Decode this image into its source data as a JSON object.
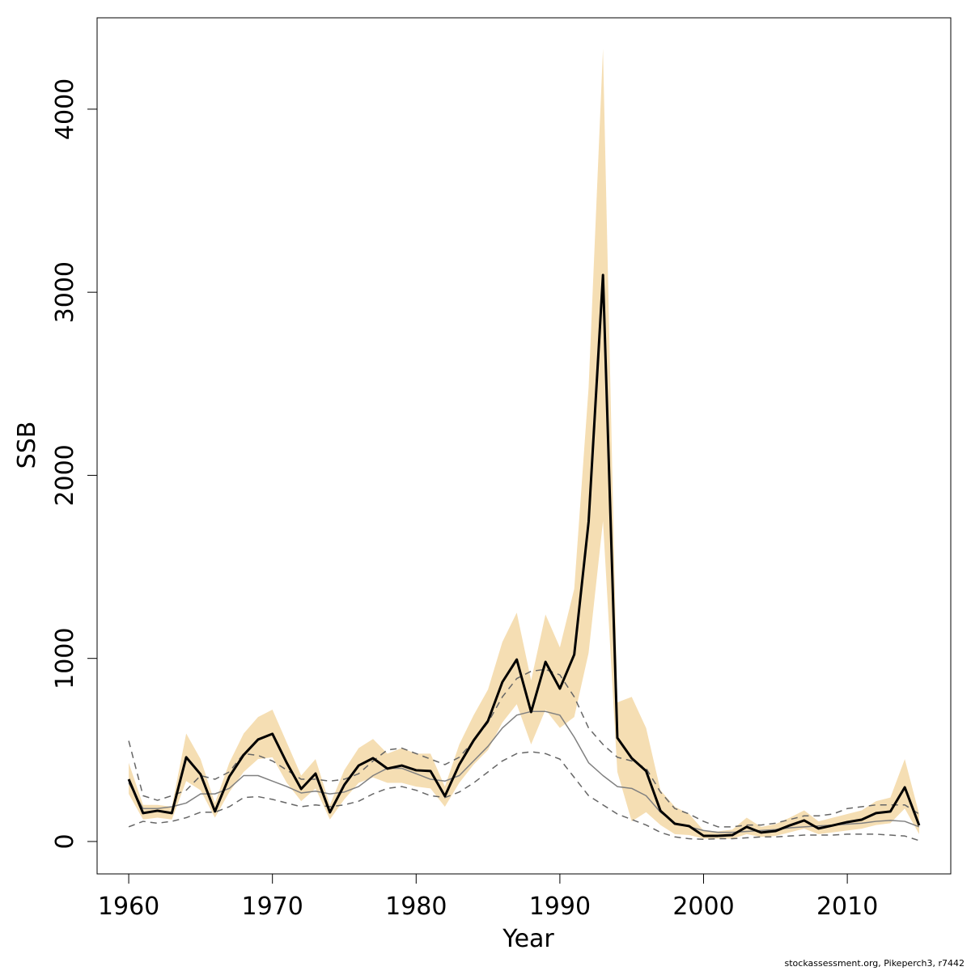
{
  "chart_data": {
    "type": "line",
    "x_label": "Year",
    "y_label": "SSB",
    "footer": "stockassessment.org, Pikeperch3, r7442",
    "x": [
      1960,
      1961,
      1962,
      1963,
      1964,
      1965,
      1966,
      1967,
      1968,
      1969,
      1970,
      1971,
      1972,
      1973,
      1974,
      1975,
      1976,
      1977,
      1978,
      1979,
      1980,
      1981,
      1982,
      1983,
      1984,
      1985,
      1986,
      1987,
      1988,
      1989,
      1990,
      1991,
      1992,
      1993,
      1994,
      1995,
      1996,
      1997,
      1998,
      1999,
      2000,
      2001,
      2002,
      2003,
      2004,
      2005,
      2006,
      2007,
      2008,
      2009,
      2010,
      2011,
      2012,
      2013,
      2014,
      2015
    ],
    "band": {
      "color": "#f5deb3",
      "upper": [
        430,
        200,
        200,
        190,
        590,
        450,
        210,
        430,
        590,
        680,
        720,
        540,
        360,
        450,
        200,
        390,
        510,
        560,
        480,
        510,
        480,
        480,
        300,
        530,
        690,
        830,
        1090,
        1250,
        880,
        1240,
        1060,
        1380,
        2480,
        4330,
        760,
        790,
        620,
        280,
        190,
        150,
        60,
        55,
        65,
        130,
        80,
        95,
        130,
        170,
        110,
        130,
        150,
        170,
        220,
        240,
        450,
        150
      ],
      "lower": [
        260,
        120,
        130,
        120,
        330,
        280,
        130,
        270,
        380,
        450,
        460,
        320,
        220,
        290,
        120,
        230,
        320,
        350,
        320,
        320,
        300,
        290,
        190,
        320,
        420,
        500,
        650,
        750,
        530,
        720,
        620,
        680,
        1030,
        1750,
        380,
        110,
        160,
        90,
        40,
        35,
        15,
        15,
        15,
        40,
        25,
        30,
        50,
        70,
        40,
        50,
        60,
        70,
        90,
        100,
        180,
        40
      ]
    },
    "series": [
      {
        "color": "#808080",
        "width": 1.5,
        "dash": false,
        "values": [
          320,
          180,
          180,
          190,
          210,
          260,
          260,
          290,
          360,
          360,
          330,
          300,
          265,
          275,
          260,
          270,
          300,
          360,
          400,
          400,
          370,
          340,
          330,
          360,
          440,
          520,
          620,
          690,
          710,
          710,
          690,
          570,
          430,
          360,
          300,
          290,
          250,
          160,
          100,
          80,
          60,
          50,
          50,
          55,
          60,
          65,
          75,
          80,
          85,
          90,
          95,
          100,
          110,
          115,
          110,
          80
        ]
      },
      {
        "color": "#666666",
        "width": 1.5,
        "dash": true,
        "values": [
          550,
          250,
          225,
          250,
          280,
          360,
          340,
          380,
          480,
          470,
          440,
          390,
          340,
          340,
          330,
          340,
          370,
          440,
          500,
          510,
          480,
          450,
          420,
          460,
          550,
          650,
          790,
          890,
          930,
          940,
          910,
          790,
          620,
          530,
          460,
          440,
          400,
          270,
          180,
          150,
          110,
          80,
          80,
          90,
          90,
          100,
          120,
          140,
          140,
          150,
          180,
          190,
          200,
          200,
          200,
          150
        ]
      },
      {
        "color": "#666666",
        "width": 1.5,
        "dash": true,
        "values": [
          80,
          110,
          100,
          110,
          130,
          160,
          160,
          190,
          240,
          245,
          230,
          210,
          190,
          200,
          190,
          200,
          220,
          260,
          290,
          300,
          280,
          250,
          240,
          270,
          320,
          380,
          440,
          480,
          490,
          480,
          450,
          350,
          250,
          200,
          150,
          120,
          90,
          50,
          25,
          15,
          12,
          15,
          15,
          20,
          25,
          25,
          30,
          35,
          35,
          35,
          40,
          40,
          40,
          35,
          30,
          5
        ]
      },
      {
        "color": "#000000",
        "width": 3,
        "dash": false,
        "values": [
          340,
          155,
          168,
          155,
          460,
          367,
          164,
          354,
          473,
          557,
          588,
          429,
          287,
          371,
          159,
          309,
          415,
          455,
          398,
          415,
          389,
          385,
          248,
          420,
          552,
          659,
          871,
          994,
          707,
          981,
          835,
          1021,
          1746,
          3094,
          566,
          455,
          385,
          168,
          97,
          84,
          31,
          31,
          35,
          80,
          49,
          57,
          88,
          115,
          71,
          88,
          106,
          119,
          155,
          164,
          296,
          88
        ]
      }
    ],
    "xlim": [
      1957.8,
      2017.2
    ],
    "ylim": [
      -177,
      4499
    ],
    "xticks": [
      1960,
      1970,
      1980,
      1990,
      2000,
      2010
    ],
    "yticks": [
      0,
      1000,
      2000,
      3000,
      4000
    ]
  }
}
